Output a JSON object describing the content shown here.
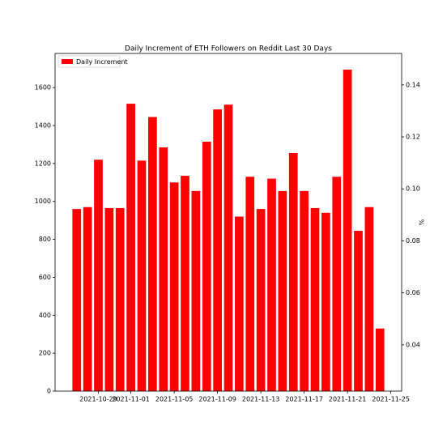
{
  "chart_data": {
    "type": "bar",
    "title": "Daily Increment of ETH Followers on Reddit Last 30 Days",
    "y2_label": "%",
    "x": [
      "2021-10-27",
      "2021-10-28",
      "2021-10-29",
      "2021-10-30",
      "2021-10-31",
      "2021-11-01",
      "2021-11-02",
      "2021-11-03",
      "2021-11-04",
      "2021-11-05",
      "2021-11-06",
      "2021-11-07",
      "2021-11-08",
      "2021-11-09",
      "2021-11-10",
      "2021-11-11",
      "2021-11-12",
      "2021-11-13",
      "2021-11-14",
      "2021-11-15",
      "2021-11-16",
      "2021-11-17",
      "2021-11-18",
      "2021-11-19",
      "2021-11-20",
      "2021-11-21",
      "2021-11-22",
      "2021-11-23",
      "2021-11-24"
    ],
    "series": [
      {
        "name": "Daily Increment",
        "color": "#ff0000",
        "values": [
          960,
          970,
          1220,
          965,
          965,
          1515,
          1215,
          1445,
          1285,
          1100,
          1135,
          1055,
          1315,
          1485,
          1510,
          920,
          1130,
          960,
          1120,
          1055,
          1255,
          1055,
          965,
          940,
          1130,
          1695,
          845,
          970,
          330
        ]
      }
    ],
    "xlim": [
      "2021-10-25",
      "2021-11-26"
    ],
    "xticks": [
      "2021-10-29",
      "2021-11-01",
      "2021-11-05",
      "2021-11-09",
      "2021-11-13",
      "2021-11-17",
      "2021-11-21",
      "2021-11-25"
    ],
    "ylim": [
      0,
      1780
    ],
    "yticks": [
      0,
      200,
      400,
      600,
      800,
      1000,
      1200,
      1400,
      1600
    ],
    "y2lim": [
      0.0222,
      0.1521
    ],
    "y2ticks": [
      0.04,
      0.06,
      0.08,
      {
        "value": 0.1,
        "label": "0.10"
      },
      0.12,
      0.14
    ],
    "legend": "upper left"
  }
}
